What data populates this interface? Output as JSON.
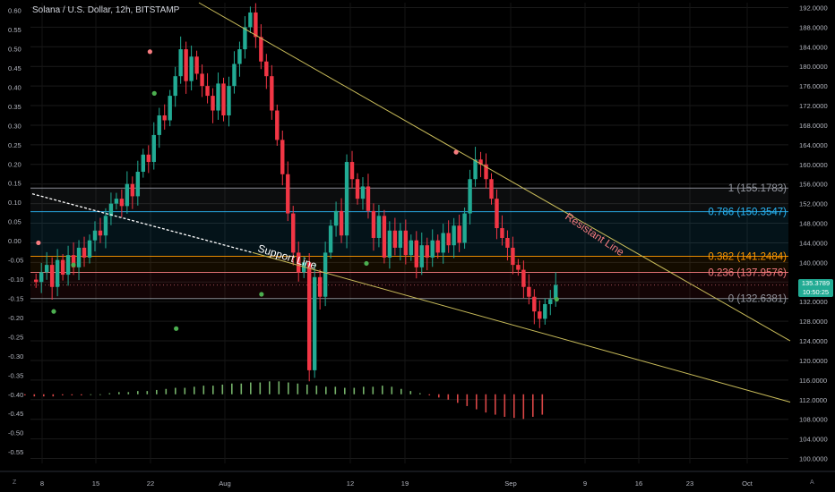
{
  "header": {
    "title": "Solana / U.S. Dollar, 12h, BITSTAMP"
  },
  "price_badge": {
    "price": "135.3789",
    "countdown": "10:50:25"
  },
  "corners": {
    "left": "Z",
    "right": "A"
  },
  "colors": {
    "background": "#000000",
    "up": "#22ab94",
    "down": "#f23645",
    "trend": "#c9bc5a",
    "fib_1": "#9598a1",
    "fib_0786": "#29b6f6",
    "fib_0382": "#ff9800",
    "fib_0236": "#f77c80",
    "fib_0": "#9598a1",
    "hist_up": "#8bd17c",
    "hist_down": "#ff5252",
    "dot_green": "#4caf50",
    "dot_red": "#f77c80"
  },
  "chart_data": {
    "type": "candlestick",
    "title": "Solana / U.S. Dollar, 12h, BITSTAMP",
    "x_axis": {
      "ticks": [
        "8",
        "15",
        "22",
        "Aug",
        "12",
        "19",
        "Sep",
        "9",
        "16",
        "23",
        "Oct"
      ],
      "tick_dates": [
        "2024-07-08",
        "2024-07-15",
        "2024-07-22",
        "2024-08-01",
        "2024-08-12",
        "2024-08-19",
        "2024-09-01",
        "2024-09-09",
        "2024-09-16",
        "2024-09-23",
        "2024-10-01"
      ]
    },
    "right_axis": {
      "ticks": [
        "192.0000",
        "188.0000",
        "184.0000",
        "180.0000",
        "176.0000",
        "172.0000",
        "168.0000",
        "164.0000",
        "160.0000",
        "156.0000",
        "152.0000",
        "148.0000",
        "144.0000",
        "140.0000",
        "136.0000",
        "132.0000",
        "128.0000",
        "124.0000",
        "120.0000",
        "116.0000",
        "112.0000",
        "108.0000",
        "104.0000",
        "100.0000"
      ],
      "range": [
        99,
        193
      ]
    },
    "left_axis": {
      "ticks": [
        "0.60",
        "0.55",
        "0.50",
        "0.45",
        "0.40",
        "0.35",
        "0.30",
        "0.25",
        "0.20",
        "0.15",
        "0.10",
        "0.05",
        "0.00",
        "-0.05",
        "-0.10",
        "-0.15",
        "-0.20",
        "-0.25",
        "-0.30",
        "-0.35",
        "-0.40",
        "-0.45",
        "-0.50",
        "-0.55"
      ],
      "range": [
        -0.58,
        0.62
      ]
    },
    "closes": [
      136.0,
      138.0,
      139.5,
      135.0,
      140.5,
      137.5,
      141.5,
      139.0,
      143.0,
      141.0,
      144.5,
      146.5,
      145.5,
      149.5,
      152.0,
      153.0,
      151.5,
      156.0,
      153.5,
      158.5,
      162.0,
      160.5,
      166.0,
      170.0,
      169.0,
      174.0,
      178.0,
      183.5,
      177.0,
      182.0,
      178.5,
      176.0,
      174.0,
      171.0,
      176.5,
      170.0,
      176.0,
      180.5,
      183.5,
      188.0,
      191.0,
      186.0,
      181.0,
      178.0,
      171.0,
      165.0,
      158.0,
      150.0,
      142.0,
      138.0,
      140.0,
      118.0,
      137.0,
      133.0,
      142.0,
      147.5,
      150.5,
      145.5,
      160.5,
      157.0,
      153.0,
      155.5,
      150.5,
      145.0,
      149.5,
      141.0,
      146.5,
      143.0,
      146.5,
      141.5,
      144.5,
      139.0,
      143.5,
      141.0,
      144.5,
      142.0,
      146.0,
      143.5,
      147.5,
      144.0,
      150.0,
      157.0,
      161.0,
      160.0,
      157.0,
      153.0,
      147.0,
      145.0,
      143.0,
      139.5,
      138.5,
      135.0,
      133.0,
      130.0,
      128.5,
      131.5,
      132.5,
      135.4
    ],
    "fibonacci": [
      {
        "label": "1 (155.1783)",
        "level": 1,
        "price": 155.1783
      },
      {
        "label": "0.786 (150.3547)",
        "level": 0.786,
        "price": 150.3547
      },
      {
        "label": "0.382 (141.2484)",
        "level": 0.382,
        "price": 141.2484
      },
      {
        "label": "0.236 (137.9576)",
        "level": 0.236,
        "price": 137.9576
      },
      {
        "label": "0 (132.6381)",
        "level": 0,
        "price": 132.6381
      }
    ],
    "annotations": [
      "Resistant Line",
      "Support Line"
    ],
    "histogram_values": [
      -0.01,
      -0.02,
      -0.02,
      -0.02,
      -0.01,
      -0.01,
      -0.01,
      0.0,
      0.0,
      0.01,
      0.02,
      0.02,
      0.03,
      0.03,
      0.04,
      0.05,
      0.06,
      0.06,
      0.07,
      0.08,
      0.08,
      0.09,
      0.1,
      0.1,
      0.11,
      0.11,
      0.12,
      0.12,
      0.11,
      0.1,
      0.09,
      0.08,
      0.07,
      0.07,
      0.06,
      0.06,
      0.07,
      0.07,
      0.08,
      0.07,
      0.05,
      0.03,
      0.01,
      -0.01,
      -0.03,
      -0.05,
      -0.08,
      -0.11,
      -0.14,
      -0.17,
      -0.19,
      -0.21,
      -0.22,
      -0.23,
      -0.21,
      -0.19,
      -0.17,
      -0.15,
      -0.13,
      -0.11,
      -0.09,
      -0.08,
      -0.07,
      -0.06,
      -0.05,
      -0.04,
      -0.03,
      -0.02,
      -0.02,
      -0.01,
      -0.01,
      -0.01,
      -0.01,
      0.0,
      0.0,
      0.0,
      -0.01,
      -0.01,
      -0.01,
      -0.01,
      0.0,
      0.01,
      0.02,
      0.03,
      0.04,
      0.03,
      0.01,
      -0.01,
      -0.02,
      -0.03,
      -0.04,
      -0.05,
      -0.06,
      -0.07,
      -0.08,
      -0.07,
      -0.06,
      -0.05
    ],
    "signal_dots": [
      {
        "index": 2,
        "price": 144.0,
        "color": "red"
      },
      {
        "index": 9,
        "price": 130.0,
        "color": "green"
      },
      {
        "index": 18,
        "price": 139.5,
        "color": "green"
      },
      {
        "index": 53,
        "price": 183.0,
        "color": "red"
      },
      {
        "index": 55,
        "price": 174.5,
        "color": "green"
      },
      {
        "index": 104,
        "price": 133.5,
        "color": "green"
      },
      {
        "index": 152,
        "price": 139.8,
        "color": "green"
      },
      {
        "index": 193,
        "price": 162.5,
        "color": "red"
      },
      {
        "index": 239,
        "price": 132.5,
        "color": "green"
      },
      {
        "index": 65,
        "price": 126.5,
        "color": "green"
      }
    ]
  }
}
